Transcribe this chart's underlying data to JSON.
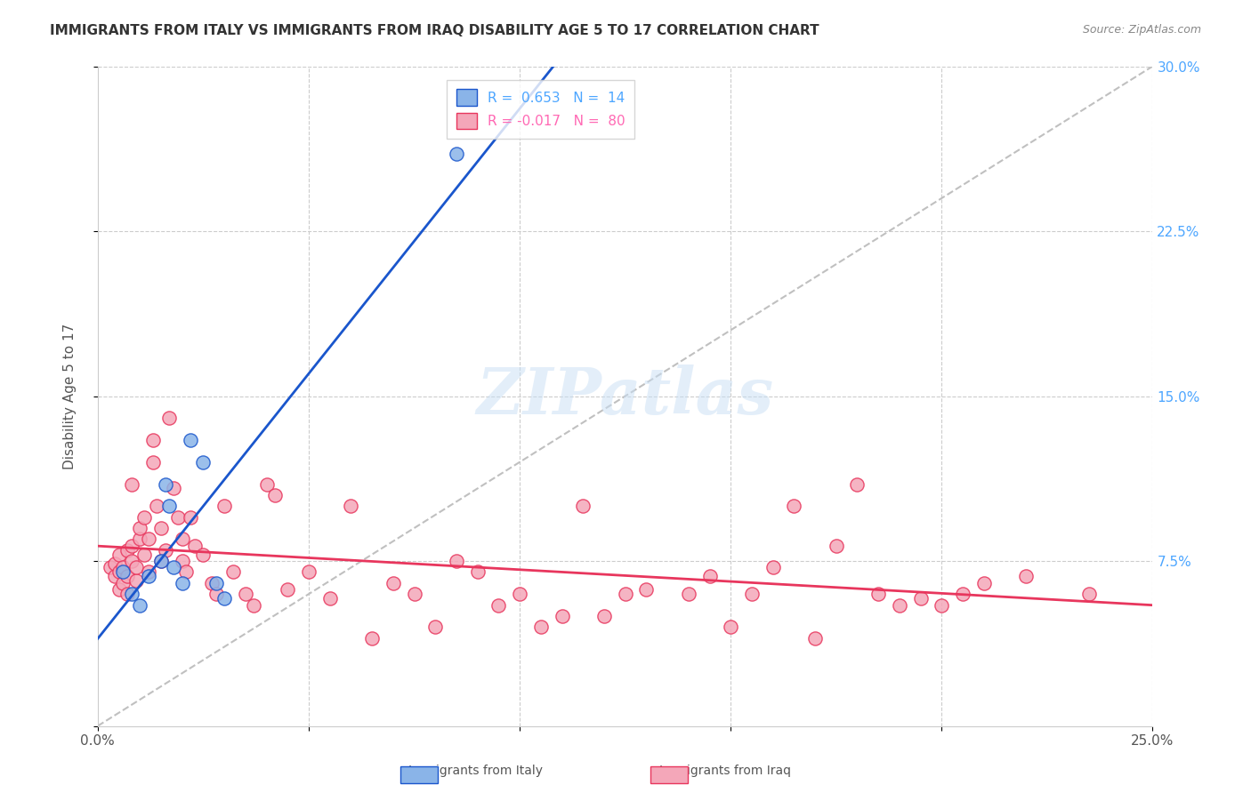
{
  "title": "IMMIGRANTS FROM ITALY VS IMMIGRANTS FROM IRAQ DISABILITY AGE 5 TO 17 CORRELATION CHART",
  "source": "Source: ZipAtlas.com",
  "xlabel_bottom": "",
  "ylabel": "Disability Age 5 to 17",
  "x_min": 0.0,
  "x_max": 0.25,
  "y_min": 0.0,
  "y_max": 0.3,
  "x_ticks": [
    0.0,
    0.05,
    0.1,
    0.15,
    0.2,
    0.25
  ],
  "x_tick_labels": [
    "0.0%",
    "",
    "",
    "",
    "",
    "25.0%"
  ],
  "y_ticks": [
    0.0,
    0.075,
    0.15,
    0.225,
    0.3
  ],
  "y_tick_labels_right": [
    "",
    "7.5%",
    "15.0%",
    "22.5%",
    "30.0%"
  ],
  "legend_italy_r": "0.653",
  "legend_italy_n": "14",
  "legend_iraq_r": "-0.017",
  "legend_iraq_n": "80",
  "italy_color": "#8ab4e8",
  "iraq_color": "#f4a7b9",
  "italy_line_color": "#1a56cc",
  "iraq_line_color": "#e8365d",
  "diagonal_color": "#c0c0c0",
  "background_color": "#ffffff",
  "watermark_text": "ZIPatlas",
  "italy_x": [
    0.006,
    0.008,
    0.01,
    0.012,
    0.015,
    0.016,
    0.017,
    0.018,
    0.02,
    0.022,
    0.025,
    0.028,
    0.03,
    0.085
  ],
  "italy_y": [
    0.07,
    0.06,
    0.055,
    0.068,
    0.075,
    0.11,
    0.1,
    0.072,
    0.065,
    0.13,
    0.12,
    0.065,
    0.058,
    0.26
  ],
  "iraq_x": [
    0.003,
    0.004,
    0.004,
    0.005,
    0.005,
    0.005,
    0.006,
    0.006,
    0.007,
    0.007,
    0.007,
    0.008,
    0.008,
    0.008,
    0.009,
    0.009,
    0.01,
    0.01,
    0.011,
    0.011,
    0.012,
    0.012,
    0.013,
    0.013,
    0.014,
    0.015,
    0.015,
    0.016,
    0.017,
    0.018,
    0.019,
    0.02,
    0.02,
    0.021,
    0.022,
    0.023,
    0.025,
    0.027,
    0.028,
    0.03,
    0.032,
    0.035,
    0.037,
    0.04,
    0.042,
    0.045,
    0.05,
    0.055,
    0.06,
    0.065,
    0.07,
    0.075,
    0.08,
    0.085,
    0.09,
    0.095,
    0.1,
    0.105,
    0.11,
    0.115,
    0.12,
    0.125,
    0.13,
    0.14,
    0.145,
    0.15,
    0.155,
    0.16,
    0.165,
    0.17,
    0.175,
    0.18,
    0.185,
    0.19,
    0.195,
    0.2,
    0.205,
    0.21,
    0.22,
    0.235
  ],
  "iraq_y": [
    0.072,
    0.068,
    0.074,
    0.062,
    0.07,
    0.078,
    0.065,
    0.072,
    0.06,
    0.068,
    0.08,
    0.075,
    0.082,
    0.11,
    0.066,
    0.072,
    0.085,
    0.09,
    0.078,
    0.095,
    0.07,
    0.085,
    0.12,
    0.13,
    0.1,
    0.075,
    0.09,
    0.08,
    0.14,
    0.108,
    0.095,
    0.075,
    0.085,
    0.07,
    0.095,
    0.082,
    0.078,
    0.065,
    0.06,
    0.1,
    0.07,
    0.06,
    0.055,
    0.11,
    0.105,
    0.062,
    0.07,
    0.058,
    0.1,
    0.04,
    0.065,
    0.06,
    0.045,
    0.075,
    0.07,
    0.055,
    0.06,
    0.045,
    0.05,
    0.1,
    0.05,
    0.06,
    0.062,
    0.06,
    0.068,
    0.045,
    0.06,
    0.072,
    0.1,
    0.04,
    0.082,
    0.11,
    0.06,
    0.055,
    0.058,
    0.055,
    0.06,
    0.065,
    0.068,
    0.06
  ]
}
